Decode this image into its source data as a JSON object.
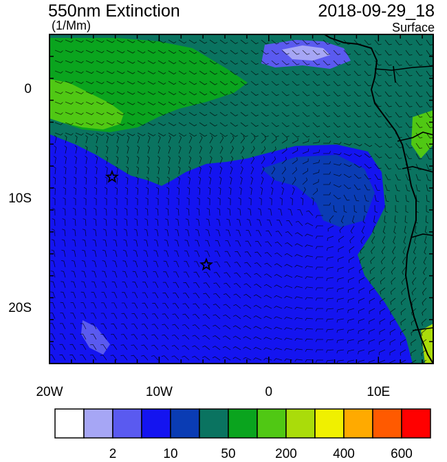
{
  "header": {
    "title": "550nm Extinction",
    "units": "(1/Mm)",
    "datetime": "2018-09-29_18",
    "level": "Surface"
  },
  "axes": {
    "lat_ticks": [
      {
        "value": 0,
        "label": "0"
      },
      {
        "value": -10,
        "label": "10S"
      },
      {
        "value": -20,
        "label": "20S"
      }
    ],
    "lon_ticks": [
      {
        "value": -20,
        "label": "20W"
      },
      {
        "value": -10,
        "label": "10W"
      },
      {
        "value": 0,
        "label": "0"
      },
      {
        "value": 10,
        "label": "10E"
      }
    ],
    "lon_range": [
      -20,
      15
    ],
    "lat_range": [
      -25,
      5
    ]
  },
  "colorbar": {
    "colors": [
      "#ffffff",
      "#a6a6f5",
      "#5a5af0",
      "#1414f0",
      "#0a3cb4",
      "#0a7360",
      "#0aa41e",
      "#50c814",
      "#aadc0a",
      "#f0f000",
      "#ffaa00",
      "#ff5a00",
      "#ff0000"
    ],
    "labels": [
      {
        "after_box": 1,
        "text": "2"
      },
      {
        "after_box": 3,
        "text": "10"
      },
      {
        "after_box": 5,
        "text": "50"
      },
      {
        "after_box": 7,
        "text": "200"
      },
      {
        "after_box": 9,
        "text": "400"
      },
      {
        "after_box": 11,
        "text": "600"
      }
    ]
  },
  "markers": [
    {
      "lon": -14.3,
      "lat": -8.0,
      "symbol": "star"
    },
    {
      "lon": -5.7,
      "lat": -16.0,
      "symbol": "star"
    }
  ]
}
